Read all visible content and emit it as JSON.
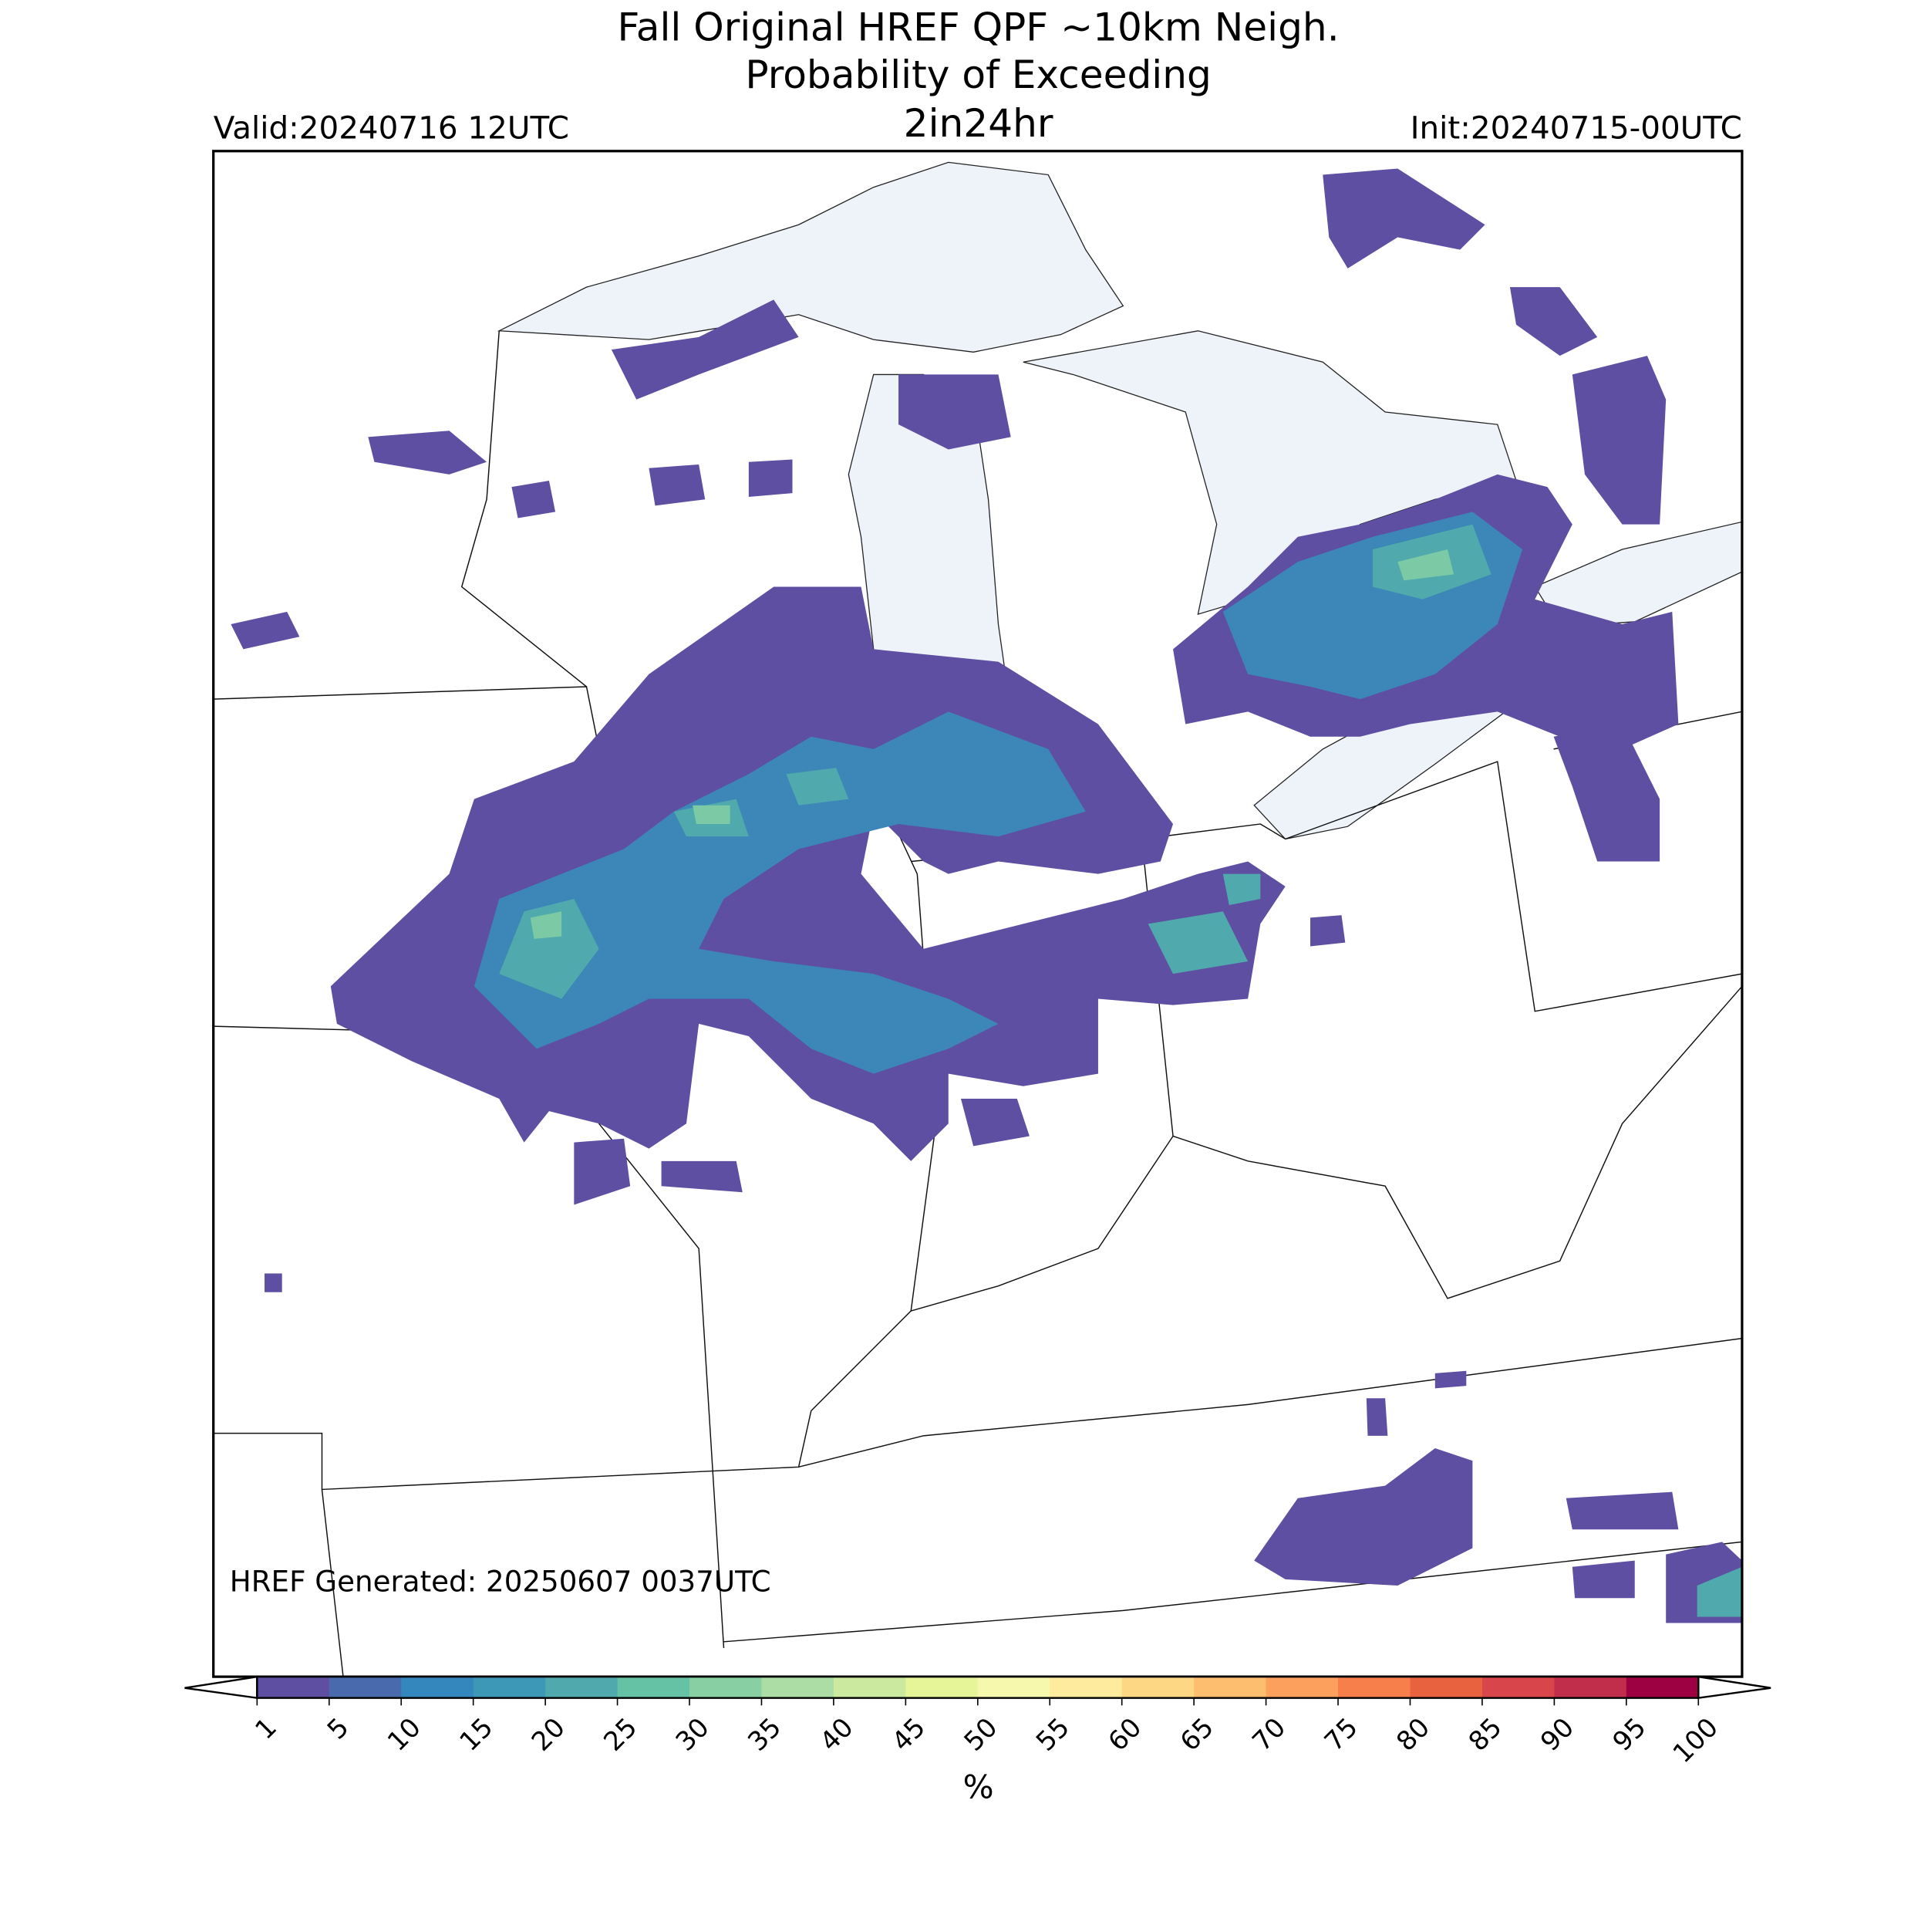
{
  "title": [
    "Fall Original HREF QPF ~10km Neigh.",
    "Probability of Exceeding",
    "2in24hr"
  ],
  "valid": "Valid:20240716 12UTC",
  "init": "Init:20240715-00UTC",
  "generated": "HREF Generated: 20250607 0037UTC",
  "colorbar": {
    "levels": [
      1,
      5,
      10,
      15,
      20,
      25,
      30,
      35,
      40,
      45,
      50,
      55,
      60,
      65,
      70,
      75,
      80,
      85,
      90,
      95,
      100
    ],
    "colors": [
      "#5e4fa2",
      "#4a6aae",
      "#3387bc",
      "#3d97b7",
      "#4fa9ad",
      "#66c2a5",
      "#88d0a4",
      "#abdda4",
      "#cbea9f",
      "#e6f598",
      "#f6f9ad",
      "#feeb9d",
      "#fed784",
      "#fdbe6f",
      "#fca05d",
      "#f67f4b",
      "#e9623f",
      "#d8464c",
      "#c12e4c",
      "#9e0142"
    ],
    "label": "%"
  }
}
